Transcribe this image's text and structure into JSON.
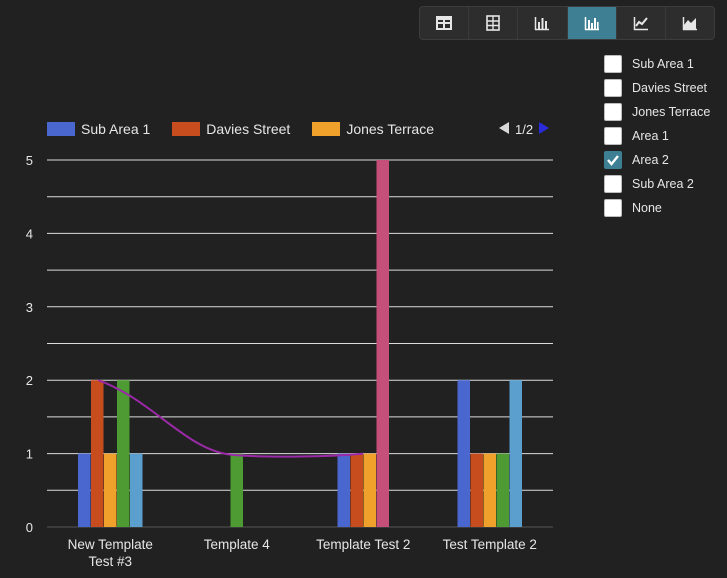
{
  "toolbar": {
    "buttons": [
      {
        "icon": "table-icon",
        "active": false
      },
      {
        "icon": "pivot-table-icon",
        "active": false
      },
      {
        "icon": "bar-chart-icon",
        "active": false
      },
      {
        "icon": "grouped-bar-chart-icon",
        "active": true
      },
      {
        "icon": "line-chart-icon",
        "active": false
      },
      {
        "icon": "area-chart-icon",
        "active": false
      }
    ]
  },
  "filters": {
    "items": [
      {
        "label": "Sub Area 1",
        "checked": false
      },
      {
        "label": "Davies Street",
        "checked": false
      },
      {
        "label": "Jones Terrace",
        "checked": false
      },
      {
        "label": "Area 1",
        "checked": false
      },
      {
        "label": "Area 2",
        "checked": true
      },
      {
        "label": "Sub Area 2",
        "checked": false
      },
      {
        "label": "None",
        "checked": false
      }
    ]
  },
  "legend": {
    "items": [
      {
        "label": "Sub Area 1",
        "color": "#4a67cf"
      },
      {
        "label": "Davies Street",
        "color": "#c84d1e"
      },
      {
        "label": "Jones Terrace",
        "color": "#f0a12b"
      }
    ],
    "page": "1/2"
  },
  "chart_data": {
    "type": "bar",
    "categories": [
      "New Template Test #3",
      "Template 4",
      "Template Test 2",
      "Test Template 2"
    ],
    "category_lines": [
      [
        "New Template",
        "Test #3"
      ],
      [
        "Template 4"
      ],
      [
        "Template Test 2"
      ],
      [
        "Test Template 2"
      ]
    ],
    "series": [
      {
        "name": "Sub Area 1",
        "color": "#4a67cf",
        "values": [
          1,
          0,
          1,
          2
        ]
      },
      {
        "name": "Davies Street",
        "color": "#c84d1e",
        "values": [
          2,
          0,
          1,
          1
        ]
      },
      {
        "name": "Jones Terrace",
        "color": "#f0a12b",
        "values": [
          1,
          0,
          1,
          1
        ]
      },
      {
        "color": "#4e9a33",
        "values": [
          2,
          1,
          0,
          1
        ]
      },
      {
        "color": "#5b9fcf",
        "values": [
          1,
          0,
          0,
          2
        ]
      },
      {
        "color": "#c44f78",
        "values": [
          0,
          0,
          5,
          0
        ]
      }
    ],
    "trend_line": {
      "color": "#9b2aa8",
      "values": [
        2,
        0.93,
        1
      ]
    },
    "ylim": [
      0,
      5
    ],
    "yticks": [
      0,
      1,
      2,
      3,
      4,
      5
    ],
    "grid": true,
    "legend_position": "top"
  }
}
